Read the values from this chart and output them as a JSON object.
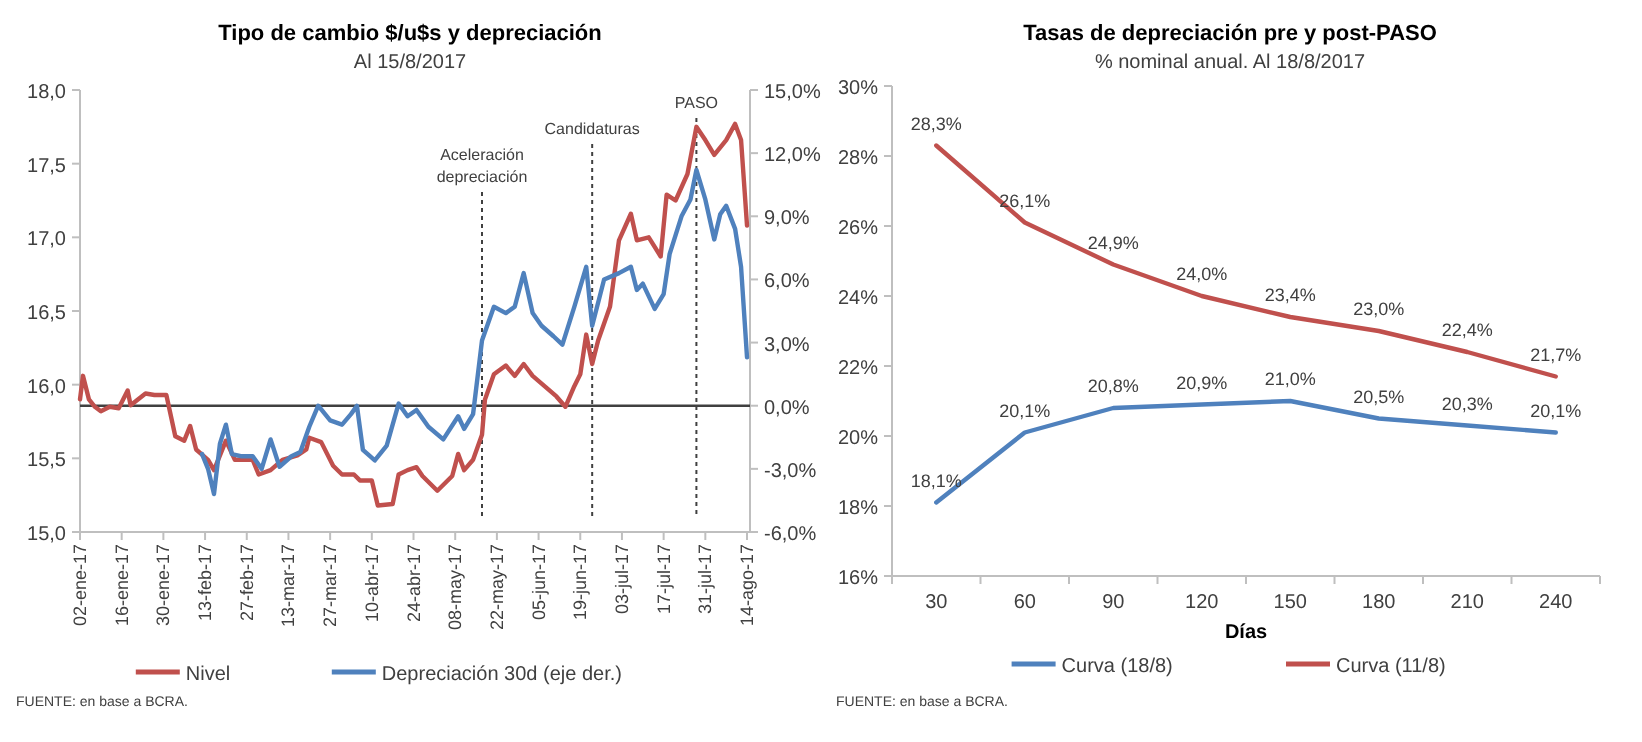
{
  "chart_data": [
    {
      "type": "line",
      "title": "Tipo de cambio $/u$s y depreciación",
      "subtitle": "Al 15/8/2017",
      "x": [
        "2017-01-02",
        "2017-01-03",
        "2017-01-05",
        "2017-01-07",
        "2017-01-09",
        "2017-01-12",
        "2017-01-15",
        "2017-01-18",
        "2017-01-19",
        "2017-01-24",
        "2017-01-27",
        "2017-01-31",
        "2017-02-03",
        "2017-02-06",
        "2017-02-08",
        "2017-02-10",
        "2017-02-14",
        "2017-02-16",
        "2017-02-20",
        "2017-02-23",
        "2017-03-01",
        "2017-03-03",
        "2017-03-07",
        "2017-03-11",
        "2017-03-16",
        "2017-03-19",
        "2017-03-20",
        "2017-03-24",
        "2017-03-28",
        "2017-03-31",
        "2017-04-04",
        "2017-04-06",
        "2017-04-10",
        "2017-04-12",
        "2017-04-17",
        "2017-04-19",
        "2017-04-22",
        "2017-04-25",
        "2017-04-27",
        "2017-05-02",
        "2017-05-07",
        "2017-05-09",
        "2017-05-11",
        "2017-05-14",
        "2017-05-17",
        "2017-05-18",
        "2017-05-21",
        "2017-05-25",
        "2017-05-28",
        "2017-05-31",
        "2017-06-03",
        "2017-06-07",
        "2017-06-11",
        "2017-06-14",
        "2017-06-17",
        "2017-06-19",
        "2017-06-21",
        "2017-06-23",
        "2017-06-25",
        "2017-06-29",
        "2017-07-02",
        "2017-07-06",
        "2017-07-08",
        "2017-07-12",
        "2017-07-16",
        "2017-07-18",
        "2017-07-21",
        "2017-07-25",
        "2017-07-28",
        "2017-07-31",
        "2017-08-03",
        "2017-08-07",
        "2017-08-10",
        "2017-08-12",
        "2017-08-14"
      ],
      "series": [
        {
          "name": "Nivel",
          "color": "#c0504d",
          "values": [
            15.9,
            16.06,
            15.9,
            15.85,
            15.82,
            15.85,
            15.84,
            15.96,
            15.86,
            15.94,
            15.93,
            15.93,
            15.65,
            15.62,
            15.72,
            15.56,
            15.49,
            15.42,
            15.62,
            15.49,
            15.49,
            15.39,
            15.42,
            15.49,
            15.52,
            15.56,
            15.64,
            15.61,
            15.45,
            15.39,
            15.39,
            15.35,
            15.35,
            15.18,
            15.19,
            15.39,
            15.42,
            15.44,
            15.38,
            15.28,
            15.38,
            15.53,
            15.42,
            15.49,
            15.66,
            15.9,
            16.07,
            16.13,
            16.06,
            16.14,
            16.06,
            15.99,
            15.92,
            15.85,
            15.99,
            16.07,
            16.34,
            16.14,
            16.3,
            16.53,
            16.98,
            17.16,
            16.98,
            17.0,
            16.87,
            17.29,
            17.25,
            17.43,
            17.75,
            17.66,
            17.56,
            17.66,
            17.77,
            17.66,
            17.08
          ]
        },
        {
          "name": "Depreciación 30d (eje der.)",
          "color": "#4f81bd",
          "axis": "y2",
          "x": [
            "2017-02-12",
            "2017-02-14",
            "2017-02-16",
            "2017-02-18",
            "2017-02-20",
            "2017-02-22",
            "2017-02-25",
            "2017-03-01",
            "2017-03-04",
            "2017-03-07",
            "2017-03-10",
            "2017-03-14",
            "2017-03-17",
            "2017-03-20",
            "2017-03-23",
            "2017-03-27",
            "2017-03-31",
            "2017-04-03",
            "2017-04-05",
            "2017-04-07",
            "2017-04-11",
            "2017-04-15",
            "2017-04-19",
            "2017-04-22",
            "2017-04-25",
            "2017-04-29",
            "2017-05-04",
            "2017-05-09",
            "2017-05-11",
            "2017-05-14",
            "2017-05-17",
            "2017-05-21",
            "2017-05-25",
            "2017-05-28",
            "2017-05-31",
            "2017-06-03",
            "2017-06-06",
            "2017-06-10",
            "2017-06-13",
            "2017-06-17",
            "2017-06-21",
            "2017-06-23",
            "2017-06-27",
            "2017-07-02",
            "2017-07-06",
            "2017-07-08",
            "2017-07-10",
            "2017-07-14",
            "2017-07-17",
            "2017-07-19",
            "2017-07-23",
            "2017-07-26",
            "2017-07-28",
            "2017-07-31",
            "2017-08-03",
            "2017-08-05",
            "2017-08-07",
            "2017-08-10",
            "2017-08-12",
            "2017-08-14"
          ],
          "values": [
            -2.3,
            -3.0,
            -4.2,
            -1.8,
            -0.9,
            -2.3,
            -2.4,
            -2.4,
            -3.0,
            -1.6,
            -2.9,
            -2.4,
            -2.2,
            -1.0,
            0.0,
            -0.7,
            -0.9,
            -0.4,
            0.0,
            -2.1,
            -2.6,
            -1.9,
            0.1,
            -0.5,
            -0.2,
            -1.0,
            -1.6,
            -0.5,
            -1.1,
            -0.4,
            3.1,
            4.7,
            4.4,
            4.7,
            6.3,
            4.4,
            3.8,
            3.3,
            2.9,
            4.7,
            6.6,
            3.8,
            6.0,
            6.3,
            6.6,
            5.5,
            5.8,
            4.6,
            5.3,
            7.2,
            9.0,
            9.8,
            11.2,
            9.8,
            7.9,
            9.1,
            9.5,
            8.4,
            6.6,
            2.3
          ]
        }
      ],
      "xlim": [
        "2017-01-02",
        "2017-08-15"
      ],
      "xticks": [
        {
          "value": "2017-01-02",
          "label": "02-ene-17"
        },
        {
          "value": "2017-01-16",
          "label": "16-ene-17"
        },
        {
          "value": "2017-01-30",
          "label": "30-ene-17"
        },
        {
          "value": "2017-02-13",
          "label": "13-feb-17"
        },
        {
          "value": "2017-02-27",
          "label": "27-feb-17"
        },
        {
          "value": "2017-03-13",
          "label": "13-mar-17"
        },
        {
          "value": "2017-03-27",
          "label": "27-mar-17"
        },
        {
          "value": "2017-04-10",
          "label": "10-abr-17"
        },
        {
          "value": "2017-04-24",
          "label": "24-abr-17"
        },
        {
          "value": "2017-05-08",
          "label": "08-may-17"
        },
        {
          "value": "2017-05-22",
          "label": "22-may-17"
        },
        {
          "value": "2017-06-05",
          "label": "05-jun-17"
        },
        {
          "value": "2017-06-19",
          "label": "19-jun-17"
        },
        {
          "value": "2017-07-03",
          "label": "03-jul-17"
        },
        {
          "value": "2017-07-17",
          "label": "17-jul-17"
        },
        {
          "value": "2017-07-31",
          "label": "31-jul-17"
        },
        {
          "value": "2017-08-14",
          "label": "14-ago-17"
        }
      ],
      "ylim": [
        15,
        18
      ],
      "yticks": [
        {
          "value": 15,
          "label": "15,0"
        },
        {
          "value": 15.5,
          "label": "15,5"
        },
        {
          "value": 16,
          "label": "16,0"
        },
        {
          "value": 16.5,
          "label": "16,5"
        },
        {
          "value": 17,
          "label": "17,0"
        },
        {
          "value": 17.5,
          "label": "17,5"
        },
        {
          "value": 18,
          "label": "18,0"
        }
      ],
      "y2lim": [
        -6,
        15
      ],
      "y2ticks": [
        {
          "value": -6,
          "label": "-6,0%"
        },
        {
          "value": -3,
          "label": "-3,0%"
        },
        {
          "value": 0,
          "label": "0,0%"
        },
        {
          "value": 3,
          "label": "3,0%"
        },
        {
          "value": 6,
          "label": "6,0%"
        },
        {
          "value": 9,
          "label": "9,0%"
        },
        {
          "value": 12,
          "label": "12,0%"
        },
        {
          "value": 15,
          "label": "15,0%"
        }
      ],
      "ref_lines": [
        {
          "axis": "x",
          "value": "2017-05-17",
          "label": "Aceleración depreciación",
          "line_style": "dotted",
          "color": "#404040"
        },
        {
          "axis": "x",
          "value": "2017-06-23",
          "label": "Candidaturas",
          "line_style": "dotted",
          "color": "#404040"
        },
        {
          "axis": "x",
          "value": "2017-07-28",
          "label": "PASO",
          "line_style": "dotted",
          "color": "#404040"
        },
        {
          "axis": "y2",
          "value": 0,
          "line_style": "solid",
          "color": "#404040"
        }
      ],
      "legend": "bottom",
      "grid": false,
      "marker": "none",
      "annotations": [
        "FUENTE: en base a BCRA."
      ]
    },
    {
      "type": "line",
      "title": "Tasas de depreciación pre y post-PASO",
      "subtitle": "% nominal anual. Al 18/8/2017",
      "xlabel": "Días",
      "categories": [
        "30",
        "60",
        "90",
        "120",
        "150",
        "180",
        "210",
        "240"
      ],
      "series": [
        {
          "name": "Curva (18/8)",
          "color": "#4f81bd",
          "values": [
            18.1,
            20.1,
            20.8,
            20.9,
            21.0,
            20.5,
            20.3,
            20.1
          ],
          "value_labels": [
            "18,1%",
            "20,1%",
            "20,8%",
            "20,9%",
            "21,0%",
            "20,5%",
            "20,3%",
            "20,1%"
          ]
        },
        {
          "name": "Curva (11/8)",
          "color": "#c0504d",
          "values": [
            28.3,
            26.1,
            24.9,
            24.0,
            23.4,
            23.0,
            22.4,
            21.7
          ],
          "value_labels": [
            "28,3%",
            "26,1%",
            "24,9%",
            "24,0%",
            "23,4%",
            "23,0%",
            "22,4%",
            "21,7%"
          ]
        }
      ],
      "ylim": [
        16,
        30
      ],
      "yticks": [
        {
          "value": 16,
          "label": "16%"
        },
        {
          "value": 18,
          "label": "18%"
        },
        {
          "value": 20,
          "label": "20%"
        },
        {
          "value": 22,
          "label": "22%"
        },
        {
          "value": 24,
          "label": "24%"
        },
        {
          "value": 26,
          "label": "26%"
        },
        {
          "value": 28,
          "label": "28%"
        },
        {
          "value": 30,
          "label": "30%"
        }
      ],
      "legend": "bottom",
      "grid": false,
      "marker": "none",
      "annotations": [
        "FUENTE: en base a BCRA."
      ]
    }
  ]
}
